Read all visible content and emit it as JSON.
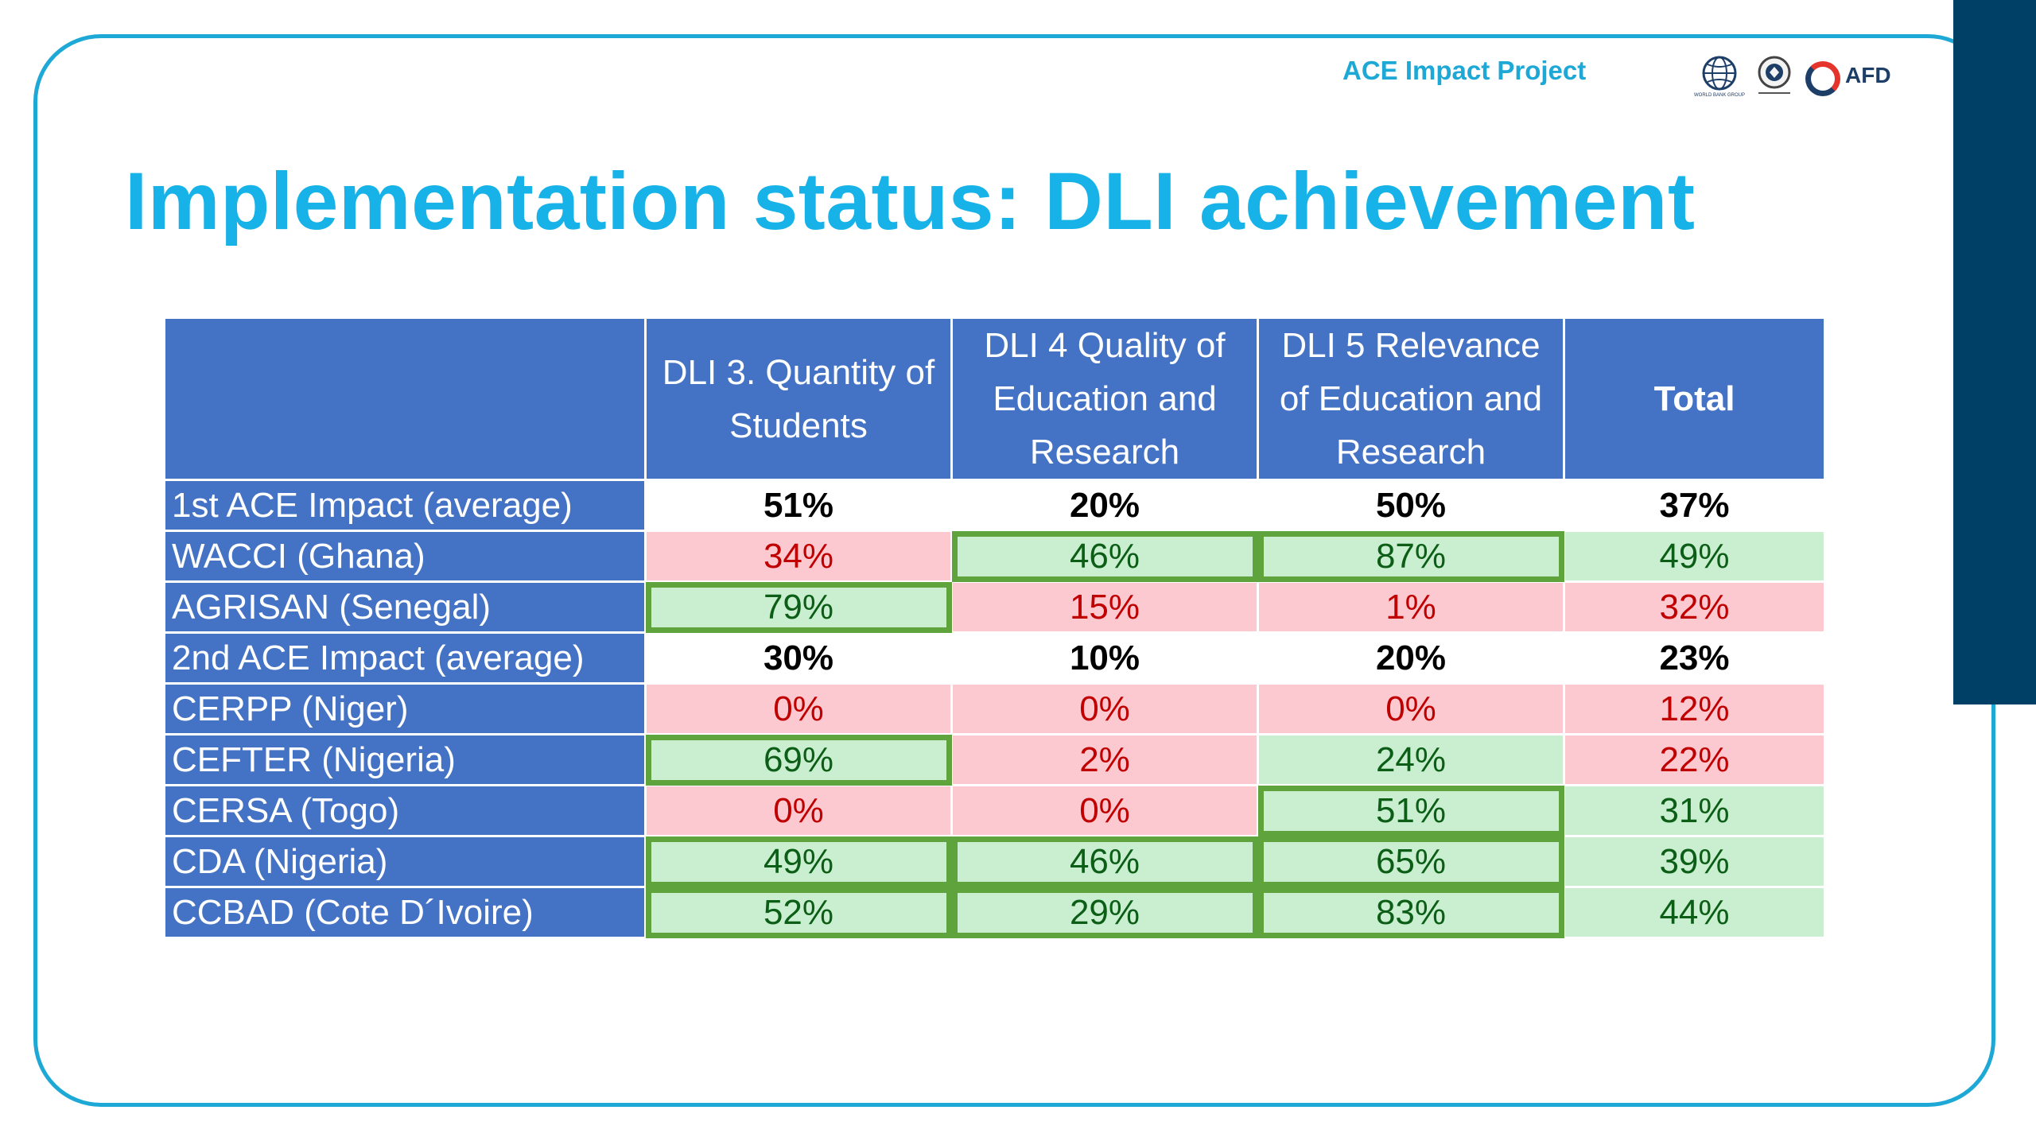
{
  "header": {
    "project": "ACE Impact Project",
    "logos": [
      "world-bank-logo",
      "seal-logo",
      "afd-logo"
    ],
    "afd_text": "AFD",
    "world_bank_text": "WORLD BANK GROUP"
  },
  "slide": {
    "title": "Implementation status: DLI achievement"
  },
  "table": {
    "columns": [
      "",
      "DLI 3. Quantity of Students",
      "DLI 4 Quality of Education and Research",
      "DLI 5 Relevance of Education and Research",
      "Total"
    ],
    "rows": [
      {
        "name": "1st ACE Impact (average)",
        "values": [
          "51%",
          "20%",
          "50%",
          "37%"
        ],
        "status": [
          "avg",
          "avg",
          "avg",
          "avg"
        ],
        "highlight": [
          false,
          false,
          false,
          false
        ]
      },
      {
        "name": "WACCI (Ghana)",
        "values": [
          "34%",
          "46%",
          "87%",
          "49%"
        ],
        "status": [
          "red",
          "green",
          "green",
          "green"
        ],
        "highlight": [
          false,
          true,
          true,
          false
        ]
      },
      {
        "name": "AGRISAN (Senegal)",
        "values": [
          "79%",
          "15%",
          "1%",
          "32%"
        ],
        "status": [
          "green",
          "red",
          "red",
          "red"
        ],
        "highlight": [
          true,
          false,
          false,
          false
        ]
      },
      {
        "name": "2nd ACE Impact (average)",
        "values": [
          "30%",
          "10%",
          "20%",
          "23%"
        ],
        "status": [
          "avg",
          "avg",
          "avg",
          "avg"
        ],
        "highlight": [
          false,
          false,
          false,
          false
        ]
      },
      {
        "name": "CERPP (Niger)",
        "values": [
          "0%",
          "0%",
          "0%",
          "12%"
        ],
        "status": [
          "red",
          "red",
          "red",
          "red"
        ],
        "highlight": [
          false,
          false,
          false,
          false
        ]
      },
      {
        "name": "CEFTER (Nigeria)",
        "values": [
          "69%",
          "2%",
          "24%",
          "22%"
        ],
        "status": [
          "green",
          "red",
          "green",
          "red"
        ],
        "highlight": [
          true,
          false,
          false,
          false
        ]
      },
      {
        "name": "CERSA (Togo)",
        "values": [
          "0%",
          "0%",
          "51%",
          "31%"
        ],
        "status": [
          "red",
          "red",
          "green",
          "green"
        ],
        "highlight": [
          false,
          false,
          true,
          false
        ]
      },
      {
        "name": "CDA (Nigeria)",
        "values": [
          "49%",
          "46%",
          "65%",
          "39%"
        ],
        "status": [
          "green",
          "green",
          "green",
          "green"
        ],
        "highlight": [
          true,
          true,
          true,
          false
        ]
      },
      {
        "name": "CCBAD (Cote D´Ivoire)",
        "values": [
          "52%",
          "29%",
          "83%",
          "44%"
        ],
        "status": [
          "green",
          "green",
          "green",
          "green"
        ],
        "highlight": [
          true,
          true,
          true,
          false
        ]
      }
    ]
  },
  "colors": {
    "accent": "#17b2e8",
    "header_fill": "#4472c4",
    "sidebar": "#003f66",
    "red_fill": "#fcc9d0",
    "green_fill": "#c9efd0",
    "highlight_border": "#5ea33c"
  }
}
